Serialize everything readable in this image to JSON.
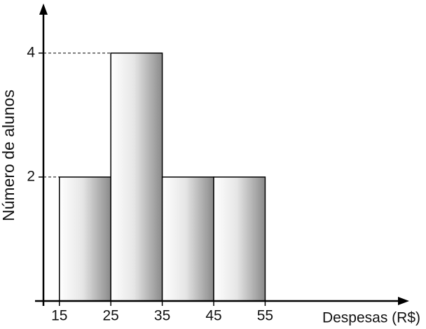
{
  "chart_data": {
    "type": "histogram",
    "x_label": "Despesas (R$)",
    "y_label": "Número de alunos",
    "bins": [
      15,
      25,
      35,
      45,
      55
    ],
    "values": [
      2,
      4,
      2,
      2
    ],
    "xlim": [
      11.9,
      83
    ],
    "ylim": [
      0,
      4.8
    ],
    "yticks": [
      2,
      4
    ]
  }
}
